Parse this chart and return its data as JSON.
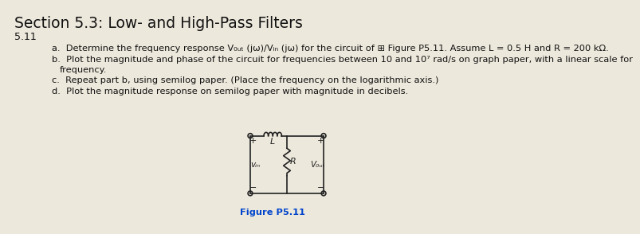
{
  "title": "Section 5.3: Low- and High-Pass Filters",
  "problem_number": "5.11",
  "line_a": "a.  Determine the frequency response V₀ᵤₜ (jω)/Vᵢₙ (jω) for the circuit of ⊞ Figure P5.11. Assume L = 0.5 H and R = 200 kΩ.",
  "line_b1": "b.  Plot the magnitude and phase of the circuit for frequencies between 10 and 10⁷ rad/s on graph paper, with a linear scale for",
  "line_b2": "      frequency.",
  "line_c": "c.  Repeat part b, using semilog paper. (Place the frequency on the logarithmic axis.)",
  "line_d": "d.  Plot the magnitude response on semilog paper with magnitude in decibels.",
  "figure_label": "Figure P5.11",
  "bg_color": "#ede8dc",
  "text_color": "#111111",
  "title_fontsize": 13.5,
  "label_fontsize": 9,
  "body_fontsize": 8.2,
  "circuit_color": "#222222",
  "figure_label_color": "#0044cc"
}
